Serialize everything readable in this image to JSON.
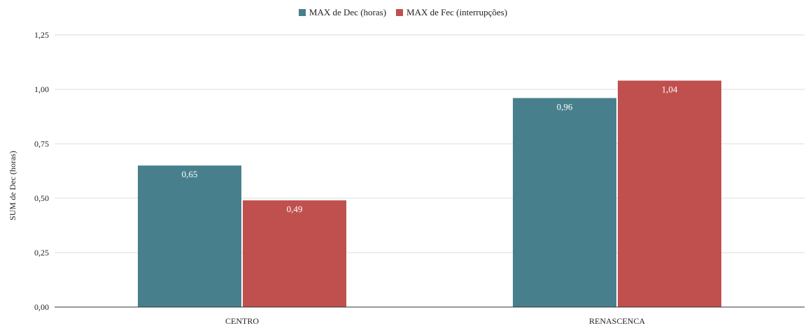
{
  "chart_data": {
    "type": "bar",
    "title": "",
    "xlabel": "",
    "ylabel": "SUM de Dec (horas)",
    "categories": [
      "CENTRO",
      "RENASCENCA"
    ],
    "series": [
      {
        "name": "MAX de Dec (horas)",
        "values": [
          0.65,
          0.96
        ],
        "labels": [
          "0,65",
          "0,96"
        ],
        "color": "#47808C"
      },
      {
        "name": "MAX de Fec (interrupções)",
        "values": [
          0.49,
          1.04
        ],
        "labels": [
          "0,49",
          "1,04"
        ],
        "color": "#C0504D"
      }
    ],
    "ylim": [
      0,
      1.25
    ],
    "yticks": [
      0,
      0.25,
      0.5,
      0.75,
      1.0,
      1.25
    ],
    "ytick_labels": [
      "0,00",
      "0,25",
      "0,50",
      "0,75",
      "1,00",
      "1,25"
    ],
    "grid": true,
    "legend_position": "top-center"
  }
}
